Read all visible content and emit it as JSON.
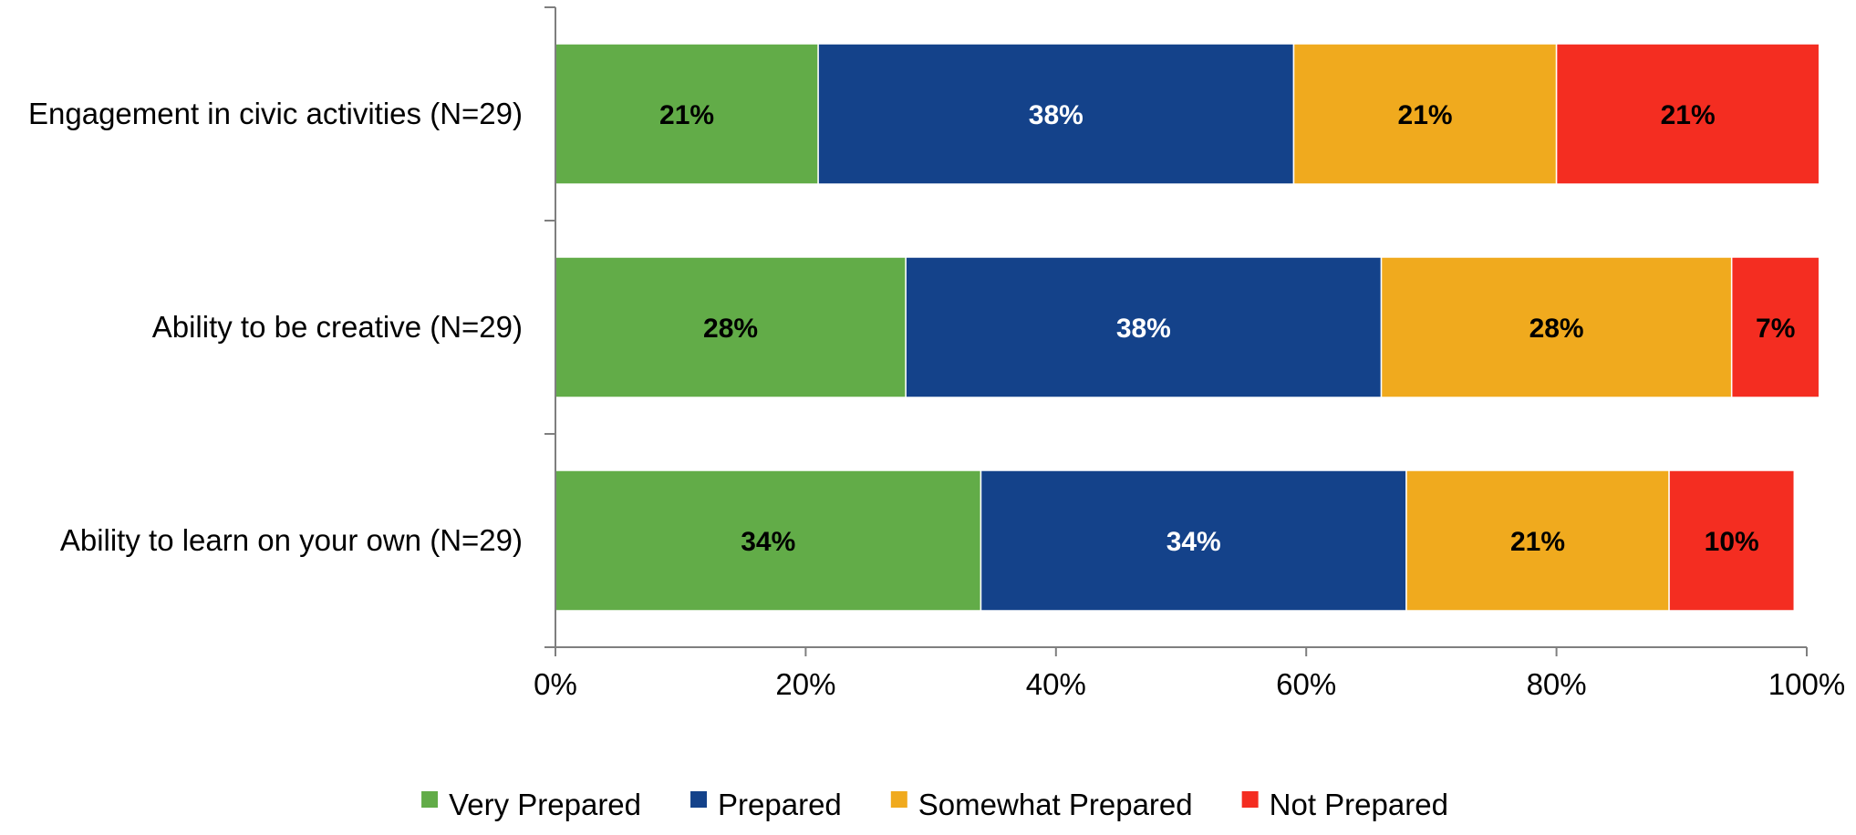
{
  "chart_data": {
    "type": "bar",
    "orientation": "horizontal",
    "stacked": true,
    "title": "",
    "xlabel": "",
    "ylabel": "",
    "xlim": [
      0,
      100
    ],
    "x_ticks": [
      "0%",
      "20%",
      "40%",
      "60%",
      "80%",
      "100%"
    ],
    "x_tick_values": [
      0,
      20,
      40,
      60,
      80,
      100
    ],
    "grid": false,
    "legend_position": "bottom",
    "categories": [
      "Engagement in civic activities (N=29)",
      "Ability to be creative (N=29)",
      "Ability to learn on your own (N=29)"
    ],
    "series": [
      {
        "name": "Very Prepared",
        "color": "#62AC48",
        "label_color": "#000000",
        "values": [
          21,
          28,
          34
        ],
        "labels": [
          "21%",
          "28%",
          "34%"
        ]
      },
      {
        "name": "Prepared",
        "color": "#14428A",
        "label_color": "#FFFFFF",
        "values": [
          38,
          38,
          34
        ],
        "labels": [
          "38%",
          "38%",
          "34%"
        ]
      },
      {
        "name": "Somewhat Prepared",
        "color": "#F0AA1E",
        "label_color": "#000000",
        "values": [
          21,
          28,
          21
        ],
        "labels": [
          "21%",
          "28%",
          "21%"
        ]
      },
      {
        "name": "Not Prepared",
        "color": "#F42D21",
        "label_color": "#000000",
        "values": [
          21,
          7,
          10
        ],
        "labels": [
          "21%",
          "7%",
          "10%"
        ]
      }
    ]
  }
}
